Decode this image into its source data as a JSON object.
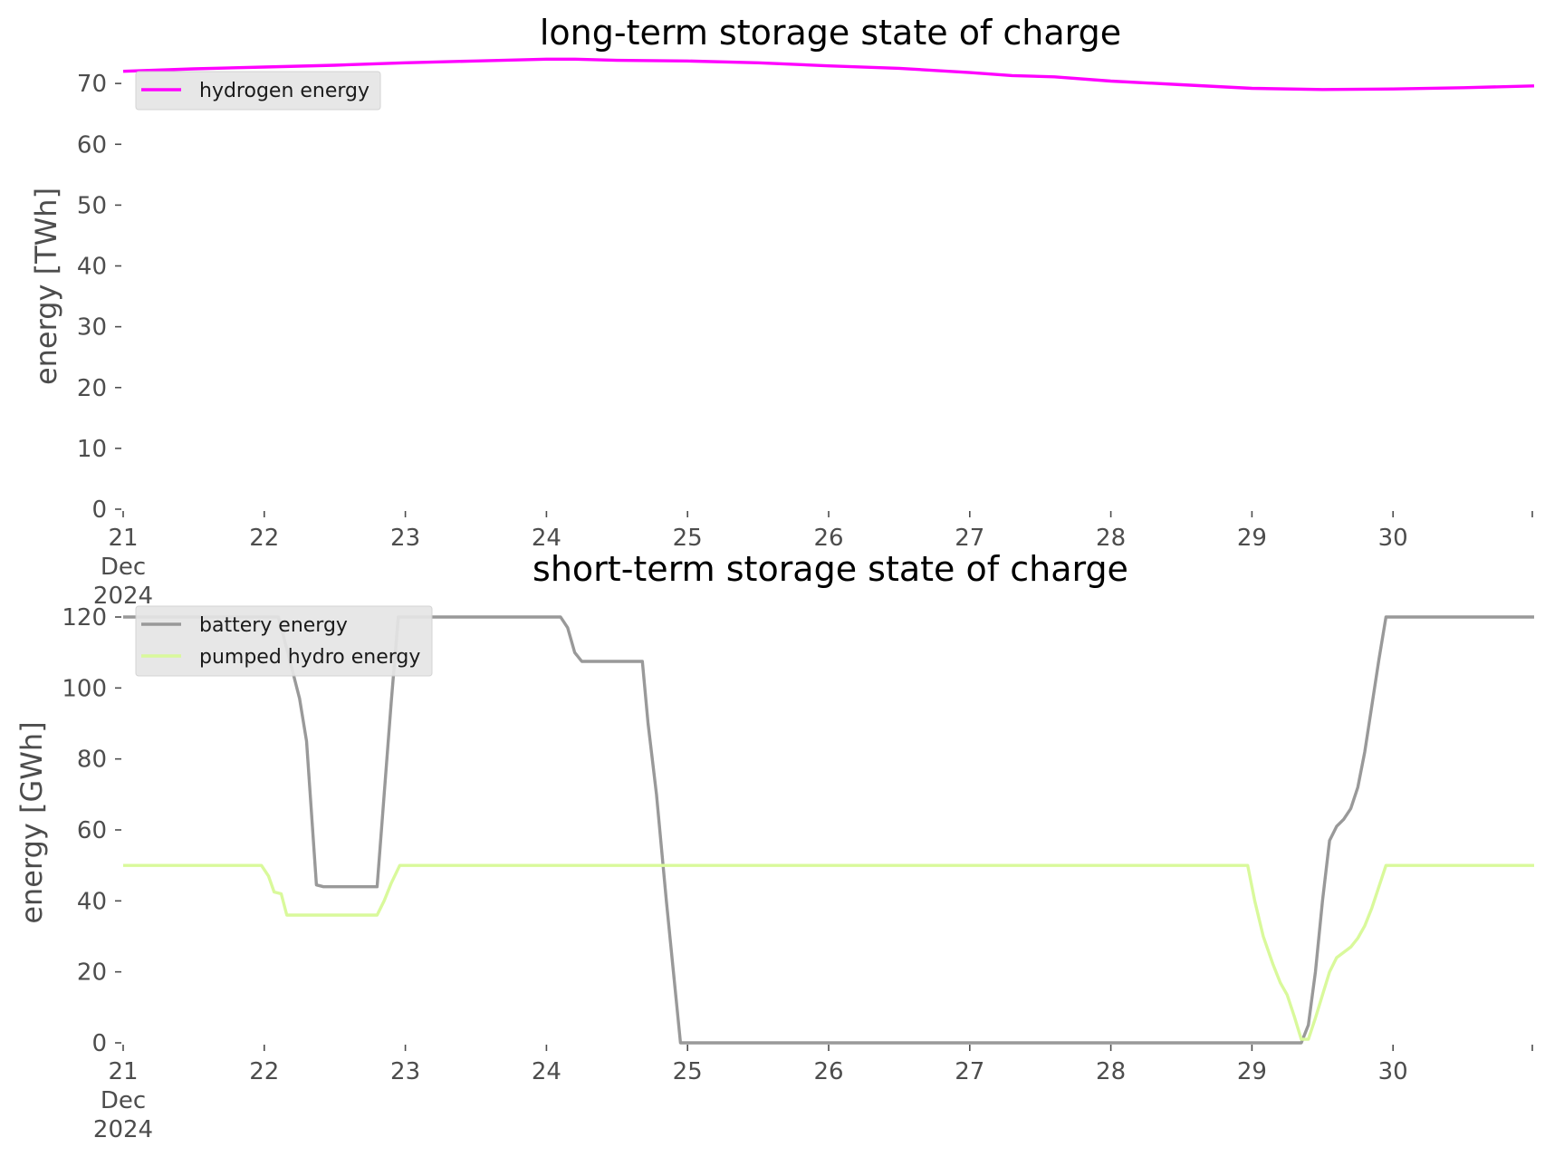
{
  "chart_data": [
    {
      "type": "line",
      "title": "long-term storage state of charge",
      "ylabel": "energy [TWh]",
      "xlabel": "",
      "x_tick_labels": [
        {
          "day": 21,
          "lines": [
            "21",
            "Dec",
            "2024"
          ]
        },
        {
          "day": 22,
          "lines": [
            "22"
          ]
        },
        {
          "day": 23,
          "lines": [
            "23"
          ]
        },
        {
          "day": 24,
          "lines": [
            "24"
          ]
        },
        {
          "day": 25,
          "lines": [
            "25"
          ]
        },
        {
          "day": 26,
          "lines": [
            "26"
          ]
        },
        {
          "day": 27,
          "lines": [
            "27"
          ]
        },
        {
          "day": 28,
          "lines": [
            "28"
          ]
        },
        {
          "day": 29,
          "lines": [
            "29"
          ]
        },
        {
          "day": 30,
          "lines": [
            "30"
          ]
        }
      ],
      "xlim": [
        21,
        31
      ],
      "y_ticks": [
        0,
        10,
        20,
        30,
        40,
        50,
        60,
        70
      ],
      "ylim": [
        0,
        73
      ],
      "grid": false,
      "legend_placement": "top-left",
      "series": [
        {
          "name": "hydrogen energy",
          "color": "#ff00ff",
          "points": [
            [
              21.0,
              72.0
            ],
            [
              21.5,
              72.4
            ],
            [
              22.0,
              72.7
            ],
            [
              22.5,
              73.0
            ],
            [
              23.0,
              73.4
            ],
            [
              23.5,
              73.7
            ],
            [
              24.0,
              74.0
            ],
            [
              24.2,
              74.0
            ],
            [
              24.5,
              73.8
            ],
            [
              25.0,
              73.7
            ],
            [
              25.5,
              73.4
            ],
            [
              26.0,
              72.9
            ],
            [
              26.5,
              72.5
            ],
            [
              27.0,
              71.8
            ],
            [
              27.3,
              71.3
            ],
            [
              27.6,
              71.1
            ],
            [
              28.0,
              70.4
            ],
            [
              28.5,
              69.8
            ],
            [
              29.0,
              69.2
            ],
            [
              29.5,
              69.0
            ],
            [
              30.0,
              69.1
            ],
            [
              30.5,
              69.3
            ],
            [
              31.0,
              69.6
            ]
          ]
        }
      ]
    },
    {
      "type": "line",
      "title": "short-term storage state of charge",
      "ylabel": "energy [GWh]",
      "xlabel": "",
      "x_tick_labels": [
        {
          "day": 21,
          "lines": [
            "21",
            "Dec",
            "2024"
          ]
        },
        {
          "day": 22,
          "lines": [
            "22"
          ]
        },
        {
          "day": 23,
          "lines": [
            "23"
          ]
        },
        {
          "day": 24,
          "lines": [
            "24"
          ]
        },
        {
          "day": 25,
          "lines": [
            "25"
          ]
        },
        {
          "day": 26,
          "lines": [
            "26"
          ]
        },
        {
          "day": 27,
          "lines": [
            "27"
          ]
        },
        {
          "day": 28,
          "lines": [
            "28"
          ]
        },
        {
          "day": 29,
          "lines": [
            "29"
          ]
        },
        {
          "day": 30,
          "lines": [
            "30"
          ]
        }
      ],
      "xlim": [
        21,
        31
      ],
      "y_ticks": [
        0,
        20,
        40,
        60,
        80,
        100,
        120
      ],
      "ylim": [
        0,
        120
      ],
      "grid": false,
      "legend_placement": "top-left",
      "series": [
        {
          "name": "battery energy",
          "color": "#999999",
          "points": [
            [
              21.0,
              120.0
            ],
            [
              22.1,
              120.0
            ],
            [
              22.18,
              108.0
            ],
            [
              22.25,
              97.0
            ],
            [
              22.3,
              85.0
            ],
            [
              22.37,
              44.5
            ],
            [
              22.42,
              44.0
            ],
            [
              22.8,
              44.0
            ],
            [
              22.85,
              70.0
            ],
            [
              22.9,
              96.0
            ],
            [
              22.95,
              120.0
            ],
            [
              24.1,
              120.0
            ],
            [
              24.15,
              117.0
            ],
            [
              24.2,
              110.0
            ],
            [
              24.25,
              107.5
            ],
            [
              24.68,
              107.5
            ],
            [
              24.72,
              90.0
            ],
            [
              24.78,
              70.0
            ],
            [
              24.85,
              40.0
            ],
            [
              24.9,
              20.0
            ],
            [
              24.95,
              0.0
            ],
            [
              29.35,
              0.0
            ],
            [
              29.4,
              5.0
            ],
            [
              29.45,
              20.0
            ],
            [
              29.5,
              40.0
            ],
            [
              29.55,
              57.0
            ],
            [
              29.6,
              61.0
            ],
            [
              29.65,
              63.0
            ],
            [
              29.7,
              66.0
            ],
            [
              29.75,
              72.0
            ],
            [
              29.8,
              82.0
            ],
            [
              29.85,
              95.0
            ],
            [
              29.9,
              108.0
            ],
            [
              29.95,
              120.0
            ],
            [
              31.0,
              120.0
            ]
          ]
        },
        {
          "name": "pumped hydro energy",
          "color": "#d9f99b",
          "points": [
            [
              21.0,
              50.0
            ],
            [
              21.98,
              50.0
            ],
            [
              22.03,
              47.0
            ],
            [
              22.07,
              42.5
            ],
            [
              22.12,
              42.0
            ],
            [
              22.16,
              36.0
            ],
            [
              22.8,
              36.0
            ],
            [
              22.85,
              40.0
            ],
            [
              22.9,
              45.0
            ],
            [
              22.96,
              50.0
            ],
            [
              28.97,
              50.0
            ],
            [
              29.02,
              40.0
            ],
            [
              29.08,
              30.0
            ],
            [
              29.15,
              22.0
            ],
            [
              29.2,
              17.0
            ],
            [
              29.25,
              13.5
            ],
            [
              29.3,
              7.5
            ],
            [
              29.35,
              1.0
            ],
            [
              29.4,
              1.0
            ],
            [
              29.45,
              7.0
            ],
            [
              29.5,
              13.5
            ],
            [
              29.55,
              20.0
            ],
            [
              29.6,
              24.0
            ],
            [
              29.65,
              25.5
            ],
            [
              29.7,
              27.0
            ],
            [
              29.75,
              29.5
            ],
            [
              29.8,
              33.0
            ],
            [
              29.85,
              38.0
            ],
            [
              29.9,
              44.0
            ],
            [
              29.95,
              50.0
            ],
            [
              31.0,
              50.0
            ]
          ]
        }
      ]
    }
  ]
}
